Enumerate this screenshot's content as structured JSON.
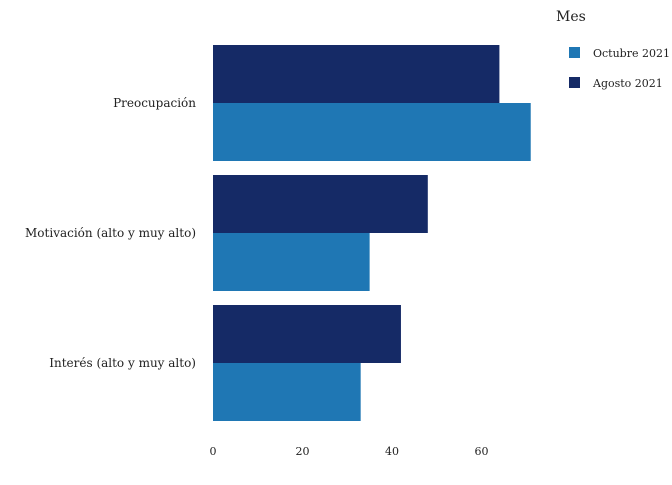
{
  "chart_data": {
    "type": "bar",
    "orientation": "horizontal",
    "categories": [
      "Preocupación",
      "Motivación (alto y muy alto)",
      "Interés (alto y muy alto)"
    ],
    "series": [
      {
        "name": "Agosto 2021",
        "color": "#152a66",
        "values": [
          64,
          48,
          42
        ]
      },
      {
        "name": "Octubre 2021",
        "color": "#1f77b4",
        "values": [
          71,
          35,
          33
        ]
      }
    ],
    "xlim": [
      0,
      75
    ],
    "x_ticks": [
      0,
      20,
      40,
      60
    ],
    "grid": false,
    "legend": {
      "title": "Mes",
      "placement": "top-right",
      "entries": [
        {
          "label": "Octubre 2021",
          "color": "#1f77b4"
        },
        {
          "label": "Agosto 2021",
          "color": "#152a66"
        }
      ]
    }
  }
}
